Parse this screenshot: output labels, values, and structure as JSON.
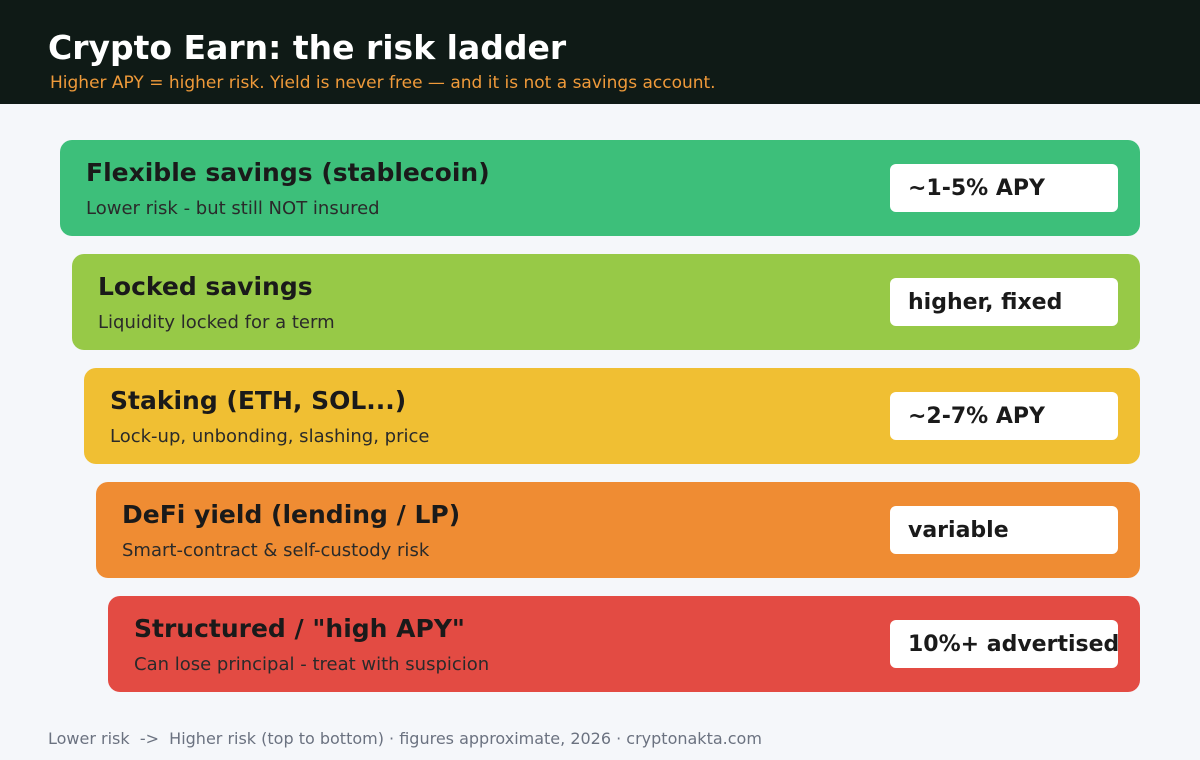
{
  "header": {
    "title": "Crypto Earn: the risk ladder",
    "subtitle": "Higher APY = higher risk. Yield is never free — and it is not a savings account."
  },
  "tiers": [
    {
      "name": "Flexible savings (stablecoin)",
      "description": "Lower risk - but still NOT insured",
      "badge": "~1-5% APY",
      "color": "#3dbf7a"
    },
    {
      "name": "Locked savings",
      "description": "Liquidity locked for a term",
      "badge": "higher, fixed",
      "color": "#97c947"
    },
    {
      "name": "Staking (ETH, SOL...)",
      "description": "Lock-up, unbonding, slashing, price",
      "badge": "~2-7% APY",
      "color": "#f0bf33"
    },
    {
      "name": "DeFi yield (lending / LP)",
      "description": "Smart-contract & self-custody risk",
      "badge": "variable",
      "color": "#ef8c33"
    },
    {
      "name": "Structured / \"high APY\"",
      "description": "Can lose principal - treat with suspicion",
      "badge": "10%+ advertised",
      "color": "#e34b43"
    }
  ],
  "footer": "Lower risk  ->  Higher risk (top to bottom) · figures approximate, 2026 · cryptonakta.com"
}
